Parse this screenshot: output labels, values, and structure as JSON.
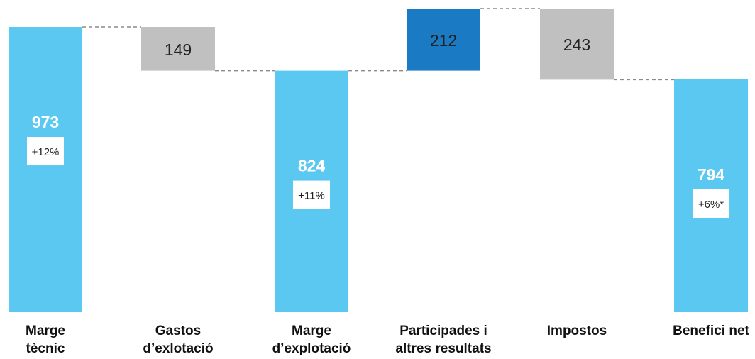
{
  "chart_data": {
    "type": "waterfall",
    "categories": [
      "Marge\ntècnic",
      "Gastos\nd’exlotació",
      "Marge\nd’explotació",
      "Participades i\naltres resultats",
      "Impostos",
      "Benefici net"
    ],
    "steps": [
      {
        "kind": "total",
        "value": 973,
        "label": "973",
        "growth": "+12%"
      },
      {
        "kind": "decrease",
        "value": 149,
        "label": "149"
      },
      {
        "kind": "total",
        "value": 824,
        "label": "824",
        "growth": "+11%"
      },
      {
        "kind": "increase",
        "value": 212,
        "label": "212"
      },
      {
        "kind": "decrease",
        "value": 243,
        "label": "243"
      },
      {
        "kind": "total",
        "value": 794,
        "label": "794",
        "growth": "+6%*"
      }
    ],
    "colors": {
      "total": "#5bc8f2",
      "decrease": "#c0c0c0",
      "increase": "#1a7bc4",
      "connector": "#8a8a8a"
    },
    "ylim": [
      0,
      1036
    ]
  }
}
